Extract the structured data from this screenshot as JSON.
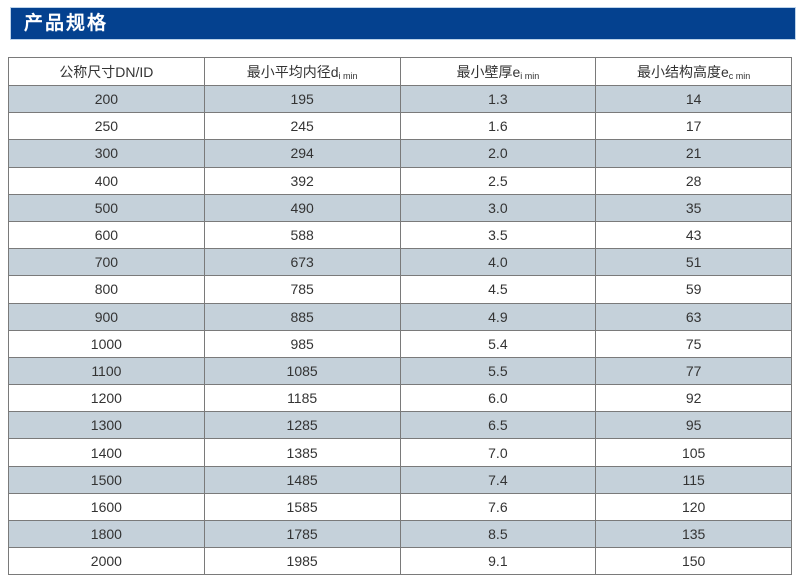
{
  "header": {
    "title": "产品规格",
    "bar_color": "#04418f"
  },
  "table": {
    "columns": [
      {
        "label": "公称尺寸DN/ID",
        "symbol": "",
        "sub": ""
      },
      {
        "label": "最小平均内径",
        "symbol": "d",
        "sub": "i min"
      },
      {
        "label": "最小壁厚",
        "symbol": "e",
        "sub": "i min"
      },
      {
        "label": "最小结构高度",
        "symbol": "e",
        "sub": "c min"
      }
    ],
    "rows": [
      [
        "200",
        "195",
        "1.3",
        "14"
      ],
      [
        "250",
        "245",
        "1.6",
        "17"
      ],
      [
        "300",
        "294",
        "2.0",
        "21"
      ],
      [
        "400",
        "392",
        "2.5",
        "28"
      ],
      [
        "500",
        "490",
        "3.0",
        "35"
      ],
      [
        "600",
        "588",
        "3.5",
        "43"
      ],
      [
        "700",
        "673",
        "4.0",
        "51"
      ],
      [
        "800",
        "785",
        "4.5",
        "59"
      ],
      [
        "900",
        "885",
        "4.9",
        "63"
      ],
      [
        "1000",
        "985",
        "5.4",
        "75"
      ],
      [
        "1100",
        "1085",
        "5.5",
        "77"
      ],
      [
        "1200",
        "1185",
        "6.0",
        "92"
      ],
      [
        "1300",
        "1285",
        "6.5",
        "95"
      ],
      [
        "1400",
        "1385",
        "7.0",
        "105"
      ],
      [
        "1500",
        "1485",
        "7.4",
        "115"
      ],
      [
        "1600",
        "1585",
        "7.6",
        "120"
      ],
      [
        "1800",
        "1785",
        "8.5",
        "135"
      ],
      [
        "2000",
        "1985",
        "9.1",
        "150"
      ]
    ],
    "colors": {
      "alt_row": "#c5d1da",
      "grid_border": "#7a7a7a"
    }
  }
}
